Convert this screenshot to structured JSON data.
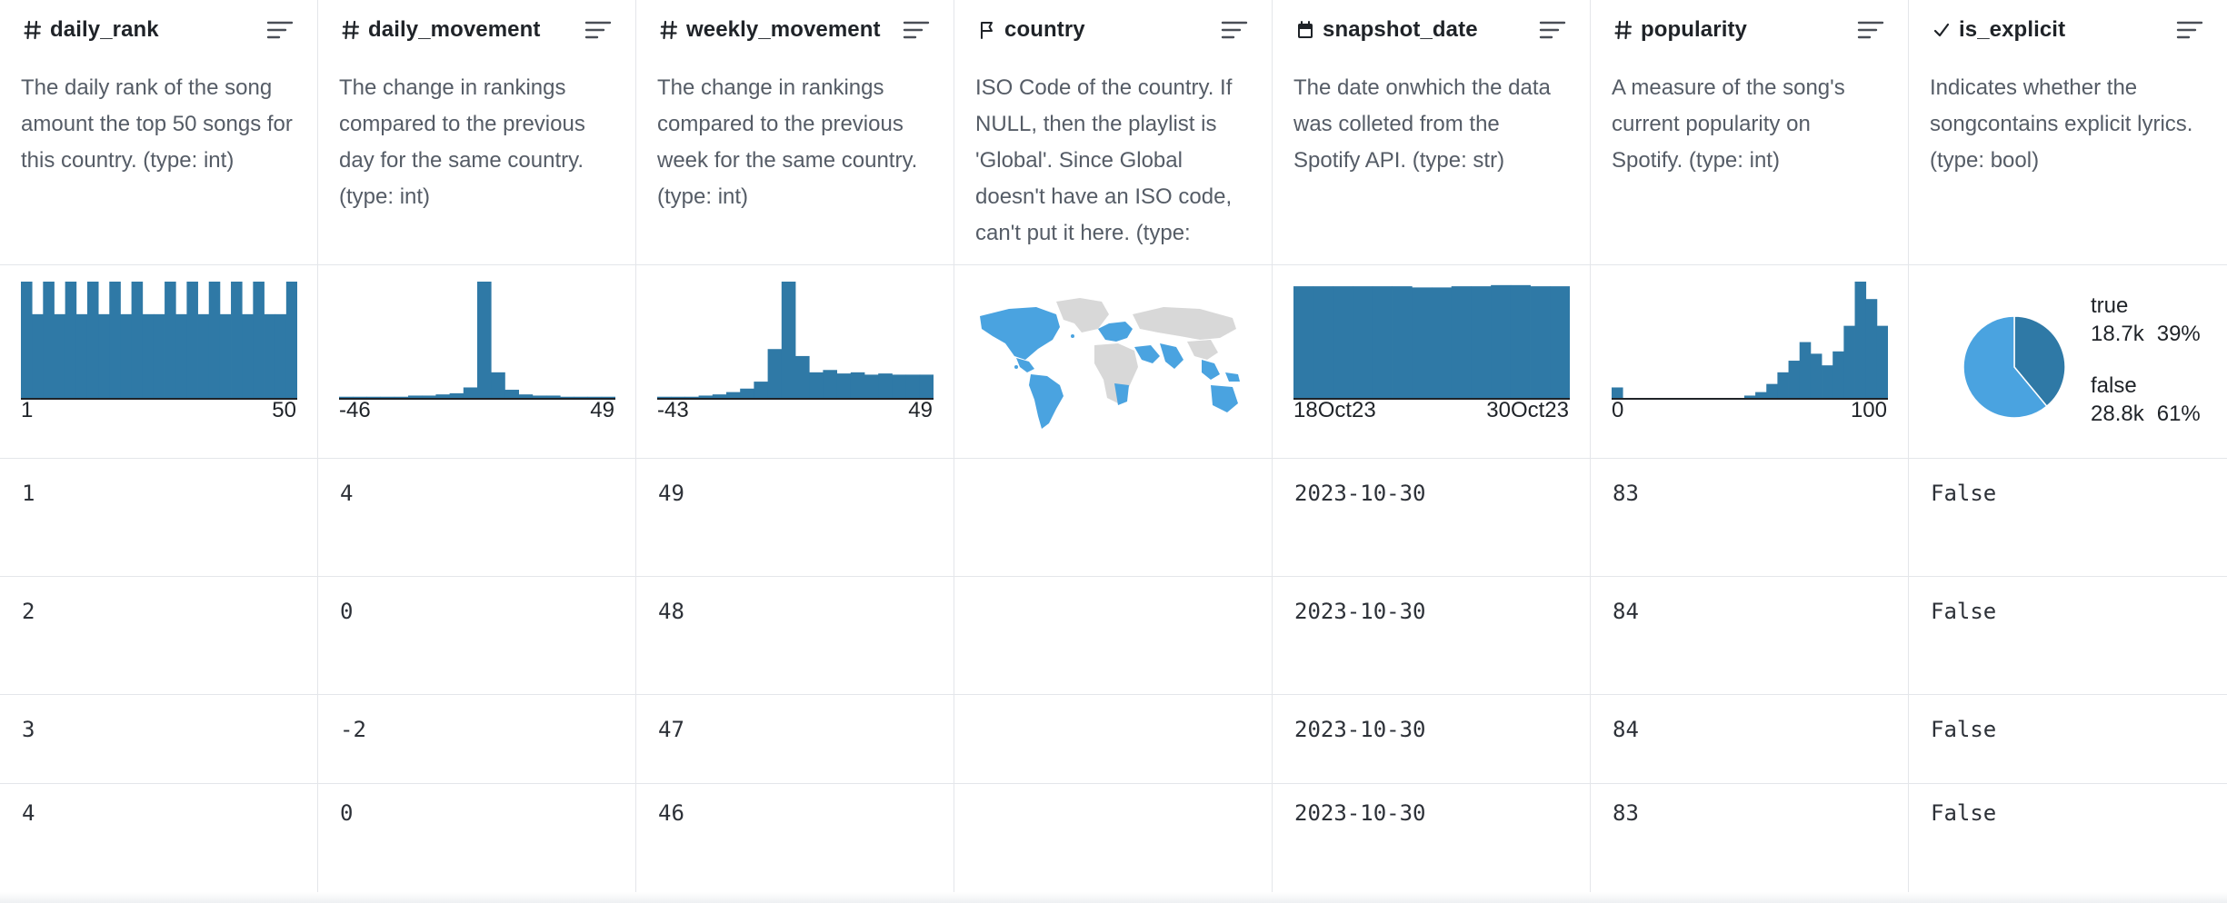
{
  "colors": {
    "bar": "#2f79a6",
    "map_highlight": "#4aa3e0",
    "map_base": "#d8d8d8",
    "pie_true": "#2f79a6",
    "pie_false": "#4aa3e0"
  },
  "columns": [
    {
      "name": "daily_rank",
      "type_icon": "hash-icon",
      "description": "The daily rank of the song amount the top 50 songs for this country. (type: int)",
      "viz": {
        "kind": "histogram",
        "min_label": "1",
        "max_label": "50"
      },
      "cells": [
        "1",
        "2",
        "3",
        "4"
      ]
    },
    {
      "name": "daily_movement",
      "type_icon": "hash-icon",
      "description": "The change in rankings compared to the previous day for the same country. (type: int)",
      "viz": {
        "kind": "histogram",
        "min_label": "-46",
        "max_label": "49"
      },
      "cells": [
        "4",
        "0",
        "-2",
        "0"
      ]
    },
    {
      "name": "weekly_movement",
      "type_icon": "hash-icon",
      "description": "The change in rankings compared to the previous week for the same country. (type: int)",
      "viz": {
        "kind": "histogram",
        "min_label": "-43",
        "max_label": "49"
      },
      "cells": [
        "49",
        "48",
        "47",
        "46"
      ]
    },
    {
      "name": "country",
      "type_icon": "flag-icon",
      "description": "ISO Code of the country. If NULL, then the playlist is 'Global'. Since Global doesn't have an ISO code, can't put it here. (type:",
      "viz": {
        "kind": "map"
      },
      "cells": [
        "",
        "",
        "",
        ""
      ]
    },
    {
      "name": "snapshot_date",
      "type_icon": "calendar-icon",
      "description": "The date onwhich the data was colleted from the Spotify API. (type: str)",
      "viz": {
        "kind": "histogram",
        "min_label": "18Oct23",
        "max_label": "30Oct23"
      },
      "cells": [
        "2023-10-30",
        "2023-10-30",
        "2023-10-30",
        "2023-10-30"
      ]
    },
    {
      "name": "popularity",
      "type_icon": "hash-icon",
      "description": "A measure of the song's current popularity on Spotify. (type: int)",
      "viz": {
        "kind": "histogram",
        "min_label": "0",
        "max_label": "100"
      },
      "cells": [
        "83",
        "84",
        "84",
        "83"
      ]
    },
    {
      "name": "is_explicit",
      "type_icon": "check-icon",
      "description": "Indicates whether the songcontains explicit lyrics. (type: bool)",
      "viz": {
        "kind": "pie",
        "items": [
          {
            "label": "true",
            "count": "18.7k",
            "pct": "39%",
            "fraction": 0.39
          },
          {
            "label": "false",
            "count": "28.8k",
            "pct": "61%",
            "fraction": 0.61
          }
        ]
      },
      "cells": [
        "False",
        "False",
        "False",
        "False"
      ]
    }
  ],
  "histograms": {
    "daily_rank": [
      1,
      0.72,
      1,
      0.72,
      1,
      0.72,
      1,
      0.72,
      1,
      0.72,
      1,
      0.72,
      0.72,
      1,
      0.72,
      1,
      0.72,
      1,
      0.72,
      1,
      0.72,
      1,
      0.72,
      0.72,
      1
    ],
    "daily_movement": [
      0.01,
      0.01,
      0.01,
      0.01,
      0.01,
      0.02,
      0.02,
      0.03,
      0.04,
      0.09,
      1,
      0.22,
      0.07,
      0.03,
      0.02,
      0.02,
      0.01,
      0.01,
      0.01,
      0.01
    ],
    "weekly_movement": [
      0.01,
      0.01,
      0.01,
      0.02,
      0.03,
      0.05,
      0.08,
      0.14,
      0.42,
      1,
      0.36,
      0.22,
      0.24,
      0.21,
      0.22,
      0.2,
      0.21,
      0.2,
      0.2,
      0.2
    ],
    "snapshot_date": [
      0.96,
      0.96,
      0.96,
      0.96,
      0.96,
      0.96,
      0.95,
      0.95,
      0.96,
      0.96,
      0.97,
      0.97,
      0.96,
      0.96
    ],
    "popularity": [
      0.09,
      0,
      0,
      0,
      0,
      0,
      0,
      0,
      0,
      0,
      0,
      0,
      0.02,
      0.05,
      0.12,
      0.22,
      0.32,
      0.48,
      0.38,
      0.28,
      0.4,
      0.62,
      1,
      0.85,
      0.62
    ]
  }
}
